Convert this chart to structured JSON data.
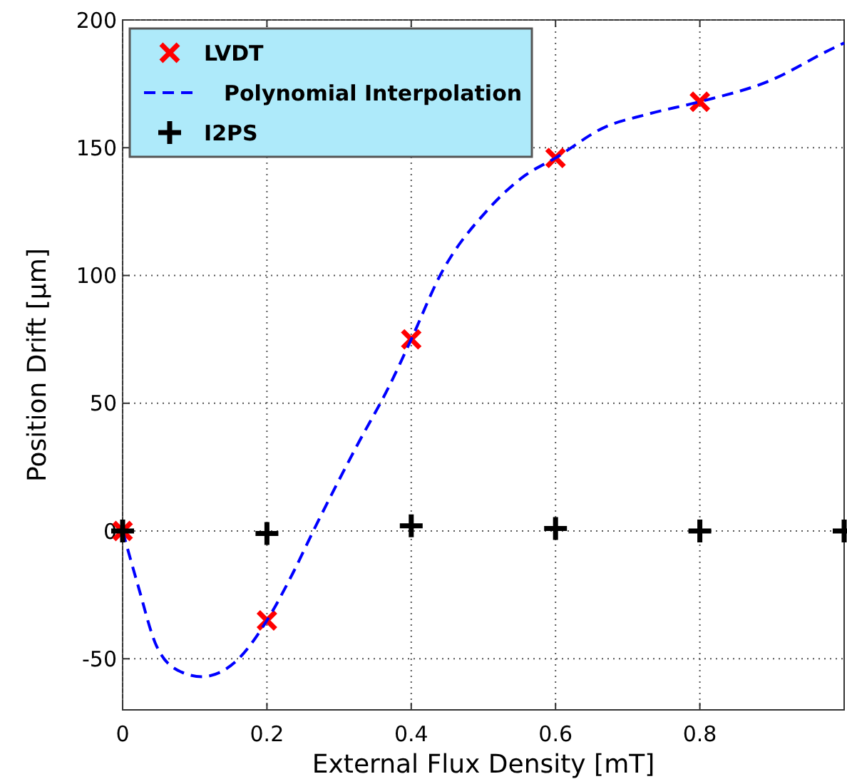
{
  "chart_data": {
    "type": "scatter",
    "xlabel": "External Flux Density [mT]",
    "ylabel": "Position Drift [µm]",
    "xlim": [
      0,
      1
    ],
    "ylim": [
      -70,
      200
    ],
    "xticks": [
      0,
      0.2,
      0.4,
      0.6,
      0.8
    ],
    "yticks": [
      -50,
      0,
      50,
      100,
      150,
      200
    ],
    "grid": true,
    "legend": "top left",
    "series": [
      {
        "name": "LVDT",
        "marker": "cross",
        "color": "#ff0000",
        "x": [
          0,
          0.2,
          0.4,
          0.6,
          0.8
        ],
        "values": [
          0,
          -35,
          75,
          146,
          168
        ]
      },
      {
        "name": "Polynomial Interpolation",
        "type": "line",
        "line_style": "dashed",
        "marker": "none",
        "color": "#0000ff",
        "x": [
          0,
          0.021,
          0.047,
          0.08,
          0.11,
          0.157,
          0.2,
          0.235,
          0.266,
          0.324,
          0.37,
          0.4,
          0.44,
          0.507,
          0.557,
          0.6,
          0.668,
          0.726,
          0.8,
          0.895,
          0.985,
          1
        ],
        "values": [
          0,
          -21,
          -45,
          -55,
          -57,
          -51,
          -35,
          -17,
          1,
          33,
          57,
          75,
          100,
          126,
          139,
          146,
          158,
          163,
          168,
          176,
          189,
          191
        ]
      },
      {
        "name": "I2PS",
        "marker": "plus",
        "color": "#000000",
        "x": [
          0,
          0.2,
          0.4,
          0.6,
          0.8,
          1
        ],
        "values": [
          0,
          -1,
          2,
          1,
          0,
          0
        ]
      }
    ]
  }
}
